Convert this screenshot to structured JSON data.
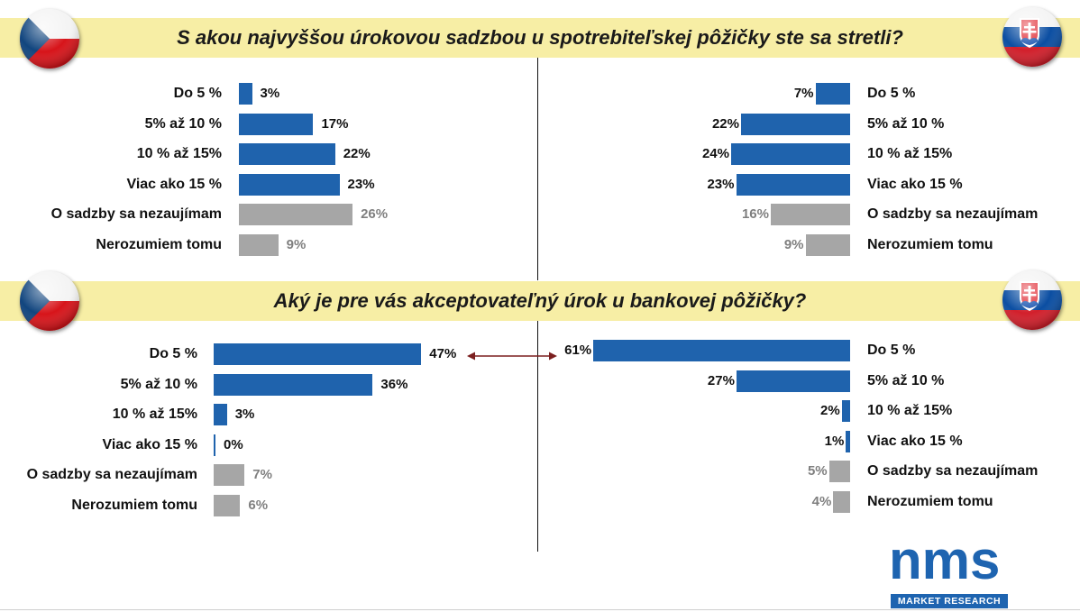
{
  "questions": [
    {
      "title": "S akou najvyššou úrokovou sadzbou u spotrebiteľskej pôžičky ste sa stretli?"
    },
    {
      "title": "Aký je pre vás akceptovateľný úrok u bankovej pôžičky?"
    }
  ],
  "colors": {
    "main": "#1f63ad",
    "other": "#a6a6a6",
    "pct_other": "#7f7f7f",
    "banner": "#f7eea5",
    "arrow": "#7b1f1f"
  },
  "flags": {
    "left": "czech-flag",
    "right": "slovak-flag"
  },
  "chart_data": [
    {
      "type": "bar",
      "title": "S akou najvyššou úrokovou sadzbou u spotrebiteľskej pôžičky ste sa stretli?",
      "categories": [
        "Do 5 %",
        "5% až 10 %",
        "10 % až 15%",
        "Viac ako 15 %",
        "O sadzby sa nezaujímam",
        "Nerozumiem tomu"
      ],
      "series": [
        {
          "values": [
            3,
            17,
            22,
            23,
            26,
            9
          ],
          "labels": [
            "3%",
            "17%",
            "22%",
            "23%",
            "26%",
            "9%"
          ],
          "flag": "czech-flag"
        },
        {
          "values": [
            7,
            22,
            24,
            23,
            16,
            9
          ],
          "labels": [
            "7%",
            "22%",
            "24%",
            "23%",
            "16%",
            "9%"
          ],
          "flag": "slovak-flag"
        }
      ],
      "unit": "%"
    },
    {
      "type": "bar",
      "title": "Aký je pre vás akceptovateľný úrok u bankovej pôžičky?",
      "categories": [
        "Do 5 %",
        "5% až 10 %",
        "10 % až 15%",
        "Viac ako 15 %",
        "O sadzby sa nezaujímam",
        "Nerozumiem tomu"
      ],
      "series": [
        {
          "values": [
            47,
            36,
            3,
            0,
            7,
            6
          ],
          "labels": [
            "47%",
            "36%",
            "3%",
            "0%",
            "7%",
            "6%"
          ],
          "flag": "czech-flag"
        },
        {
          "values": [
            61,
            27,
            2,
            1,
            5,
            4
          ],
          "labels": [
            "61%",
            "27%",
            "2%",
            "1%",
            "5%",
            "4%"
          ],
          "flag": "slovak-flag"
        }
      ],
      "unit": "%"
    }
  ],
  "logo": {
    "main": "nms",
    "sub": "MARKET RESEARCH"
  }
}
